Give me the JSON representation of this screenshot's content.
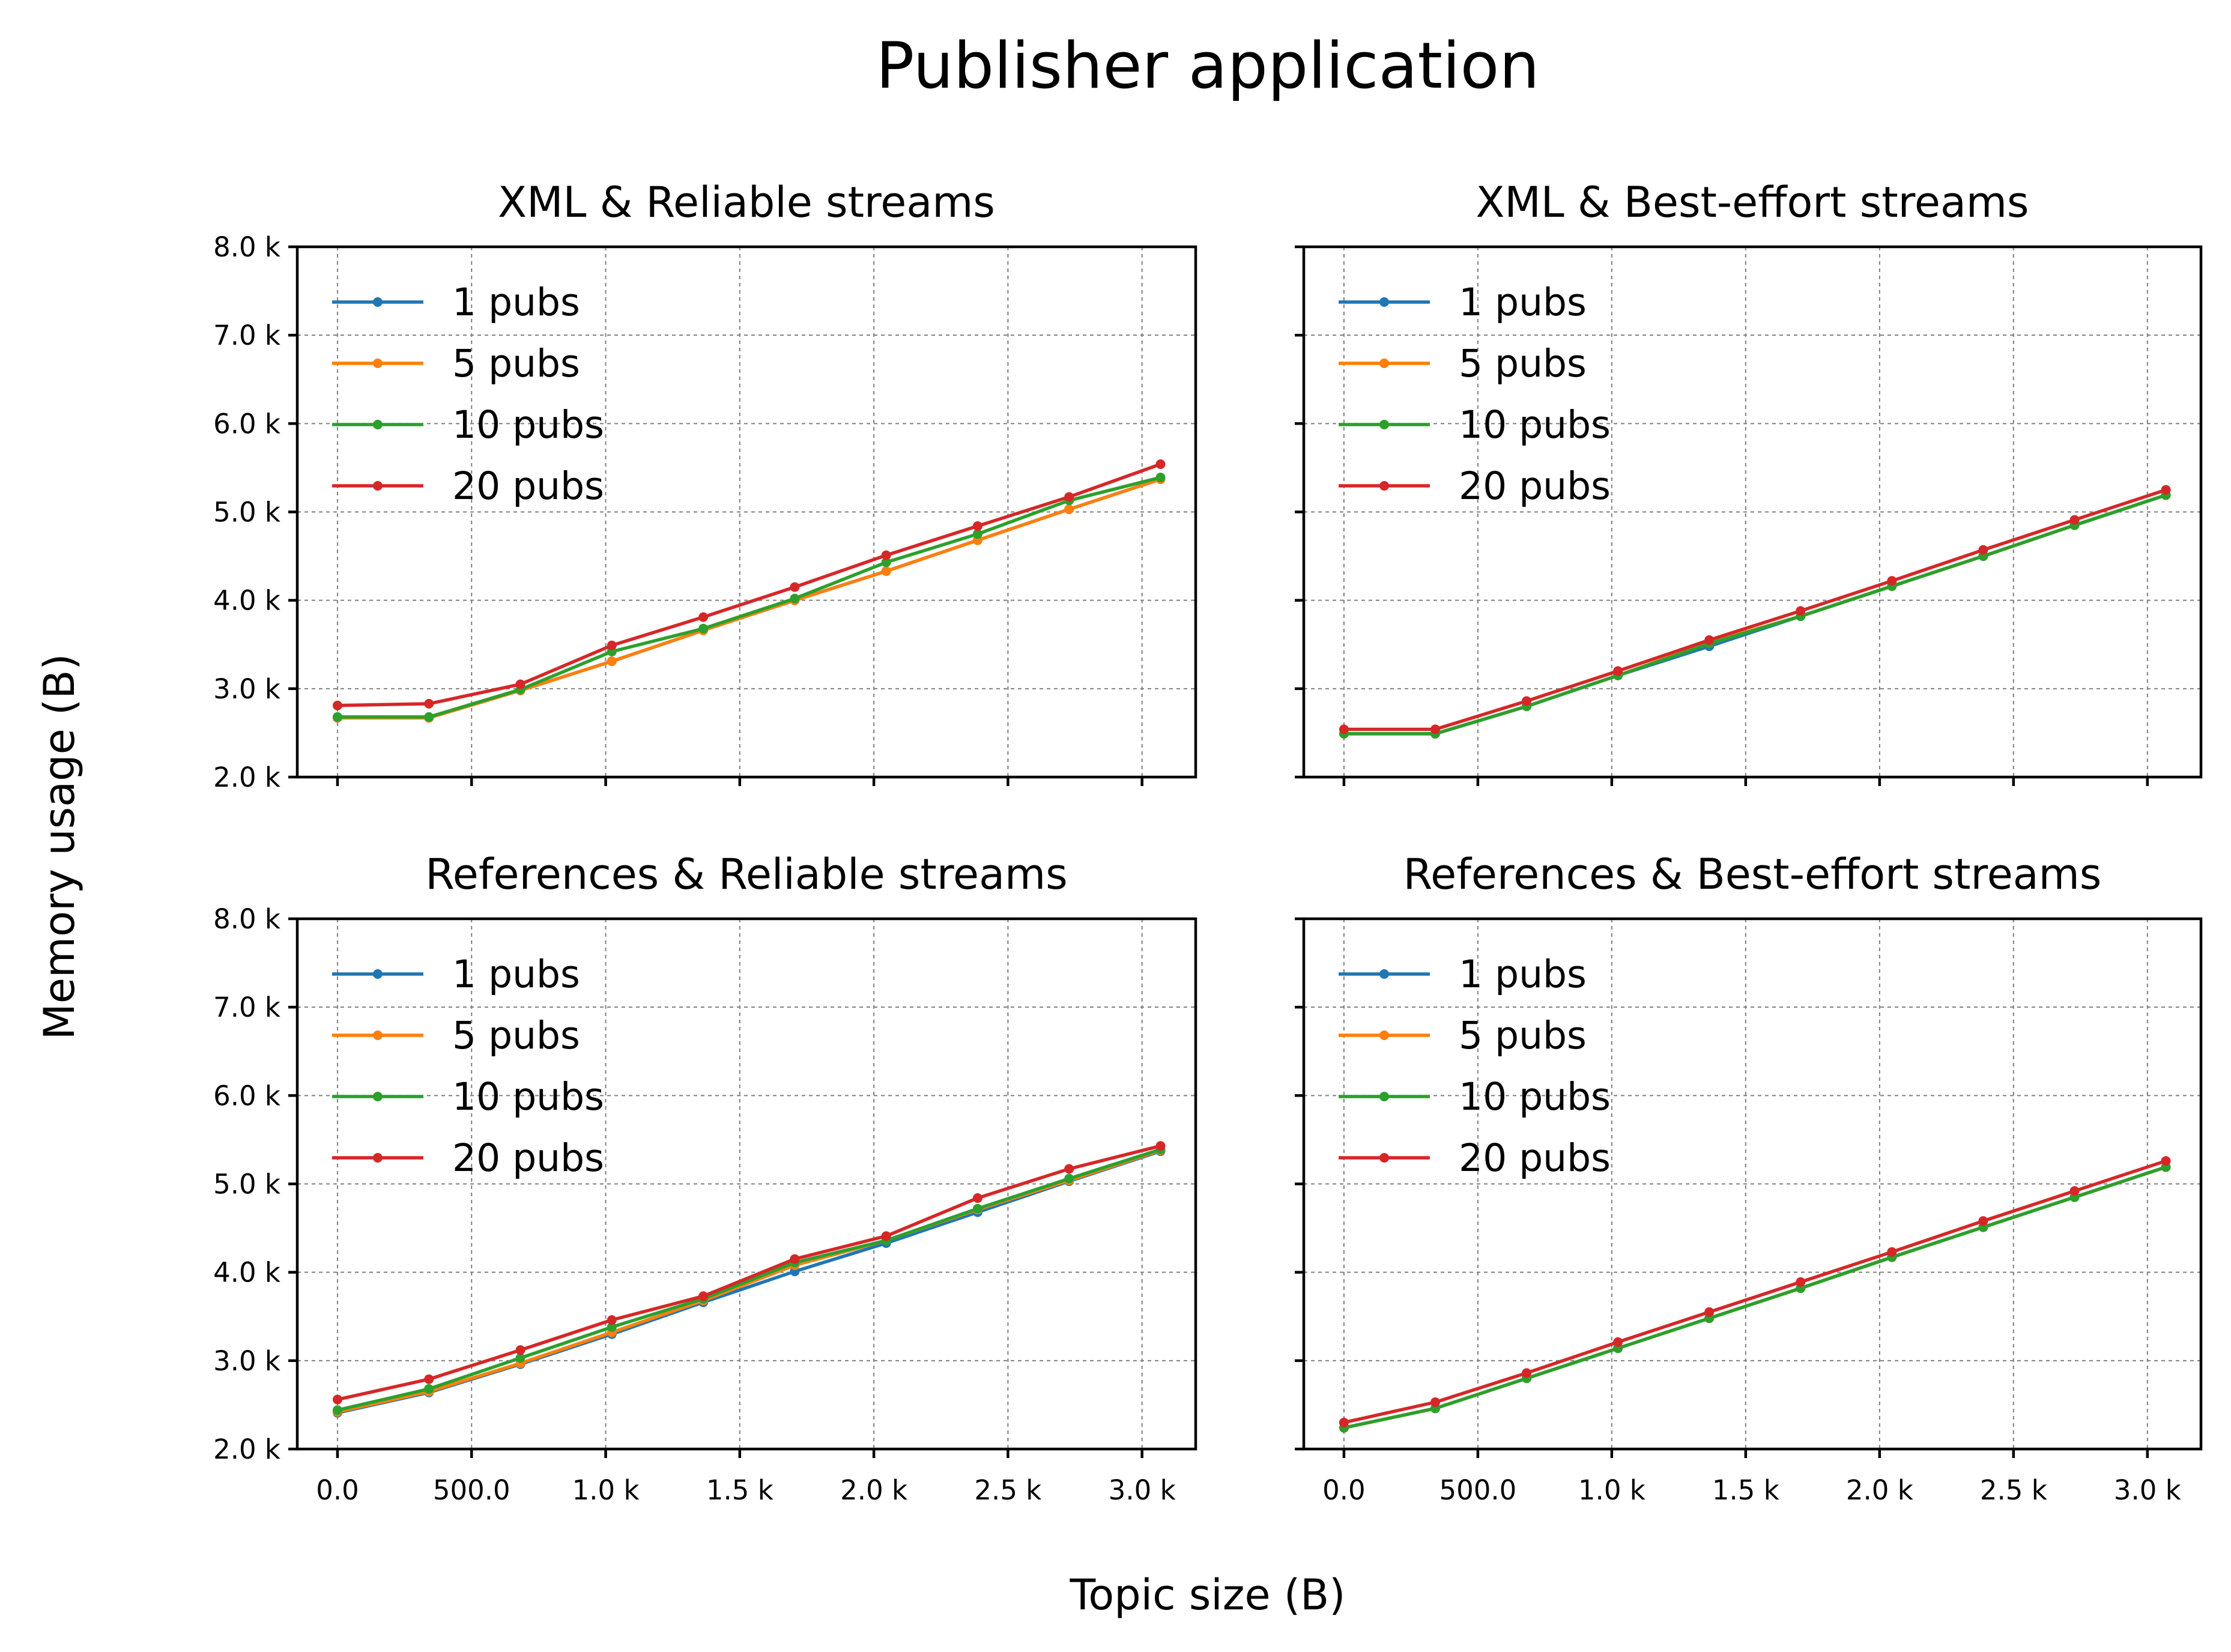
{
  "figure": {
    "title": "Publisher application",
    "xlabel": "Topic size (B)",
    "ylabel": "Memory usage (B)"
  },
  "colors": {
    "1 pubs": "#1f77b4",
    "5 pubs": "#ff7f0e",
    "10 pubs": "#2ca02c",
    "20 pubs": "#d62728"
  },
  "chart_data": [
    {
      "type": "line",
      "title": "XML & Reliable streams",
      "xlim": [
        -150,
        3200
      ],
      "ylim": [
        2000,
        8000
      ],
      "x_ticks": [
        0,
        500,
        1000,
        1500,
        2000,
        2500,
        3000
      ],
      "x_tick_labels": [
        "0.0",
        "500.0",
        "1.0 k",
        "1.5 k",
        "2.0 k",
        "2.5 k",
        "3.0 k"
      ],
      "y_ticks": [
        2000,
        3000,
        4000,
        5000,
        6000,
        7000,
        8000
      ],
      "y_tick_labels": [
        "2.0 k",
        "3.0 k",
        "4.0 k",
        "5.0 k",
        "6.0 k",
        "7.0 k",
        "8.0 k"
      ],
      "show_x_tick_labels": false,
      "grid": true,
      "legend": "upper-left",
      "x": [
        0,
        341,
        682,
        1023,
        1364,
        1705,
        2046,
        2387,
        2728,
        3069
      ],
      "series": [
        {
          "name": "1 pubs",
          "values": [
            2670,
            2670,
            2980,
            3310,
            3660,
            4000,
            4330,
            4680,
            5030,
            5370
          ]
        },
        {
          "name": "5 pubs",
          "values": [
            2670,
            2670,
            2980,
            3310,
            3660,
            4000,
            4330,
            4680,
            5030,
            5370
          ]
        },
        {
          "name": "10 pubs",
          "values": [
            2680,
            2680,
            2990,
            3420,
            3680,
            4020,
            4430,
            4750,
            5130,
            5390
          ]
        },
        {
          "name": "20 pubs",
          "values": [
            2810,
            2830,
            3050,
            3490,
            3810,
            4150,
            4510,
            4840,
            5170,
            5540
          ]
        }
      ]
    },
    {
      "type": "line",
      "title": "XML & Best-effort streams",
      "xlim": [
        -150,
        3200
      ],
      "ylim": [
        2000,
        8000
      ],
      "x_ticks": [
        0,
        500,
        1000,
        1500,
        2000,
        2500,
        3000
      ],
      "x_tick_labels": [
        "0.0",
        "500.0",
        "1.0 k",
        "1.5 k",
        "2.0 k",
        "2.5 k",
        "3.0 k"
      ],
      "y_ticks": [
        2000,
        3000,
        4000,
        5000,
        6000,
        7000,
        8000
      ],
      "y_tick_labels": [
        "2.0 k",
        "3.0 k",
        "4.0 k",
        "5.0 k",
        "6.0 k",
        "7.0 k",
        "8.0 k"
      ],
      "show_x_tick_labels": false,
      "show_y_tick_labels": false,
      "grid": true,
      "legend": "upper-left",
      "x": [
        0,
        341,
        682,
        1023,
        1364,
        1705,
        2046,
        2387,
        2728,
        3069
      ],
      "series": [
        {
          "name": "1 pubs",
          "values": [
            2490,
            2490,
            2800,
            3150,
            3480,
            3820,
            4160,
            4500,
            4850,
            5190
          ]
        },
        {
          "name": "5 pubs",
          "values": [
            2490,
            2490,
            2800,
            3150,
            3520,
            3820,
            4160,
            4500,
            4850,
            5190
          ]
        },
        {
          "name": "10 pubs",
          "values": [
            2490,
            2490,
            2800,
            3150,
            3510,
            3820,
            4160,
            4500,
            4850,
            5190
          ]
        },
        {
          "name": "20 pubs",
          "values": [
            2540,
            2540,
            2860,
            3200,
            3550,
            3880,
            4220,
            4570,
            4910,
            5250
          ]
        }
      ]
    },
    {
      "type": "line",
      "title": "References & Reliable streams",
      "xlim": [
        -150,
        3200
      ],
      "ylim": [
        2000,
        8000
      ],
      "x_ticks": [
        0,
        500,
        1000,
        1500,
        2000,
        2500,
        3000
      ],
      "x_tick_labels": [
        "0.0",
        "500.0",
        "1.0 k",
        "1.5 k",
        "2.0 k",
        "2.5 k",
        "3.0 k"
      ],
      "y_ticks": [
        2000,
        3000,
        4000,
        5000,
        6000,
        7000,
        8000
      ],
      "y_tick_labels": [
        "2.0 k",
        "3.0 k",
        "4.0 k",
        "5.0 k",
        "6.0 k",
        "7.0 k",
        "8.0 k"
      ],
      "grid": true,
      "legend": "upper-left",
      "x": [
        0,
        341,
        682,
        1023,
        1364,
        1705,
        2046,
        2387,
        2728,
        3069
      ],
      "series": [
        {
          "name": "1 pubs",
          "values": [
            2410,
            2640,
            2960,
            3300,
            3660,
            4010,
            4330,
            4680,
            5030,
            5370
          ]
        },
        {
          "name": "5 pubs",
          "values": [
            2420,
            2650,
            2970,
            3320,
            3680,
            4080,
            4360,
            4710,
            5040,
            5380
          ]
        },
        {
          "name": "10 pubs",
          "values": [
            2440,
            2680,
            3030,
            3380,
            3700,
            4110,
            4360,
            4720,
            5060,
            5390
          ]
        },
        {
          "name": "20 pubs",
          "values": [
            2560,
            2790,
            3120,
            3460,
            3730,
            4150,
            4410,
            4840,
            5170,
            5430
          ]
        }
      ]
    },
    {
      "type": "line",
      "title": "References & Best-effort streams",
      "xlim": [
        -150,
        3200
      ],
      "ylim": [
        2000,
        8000
      ],
      "x_ticks": [
        0,
        500,
        1000,
        1500,
        2000,
        2500,
        3000
      ],
      "x_tick_labels": [
        "0.0",
        "500.0",
        "1.0 k",
        "1.5 k",
        "2.0 k",
        "2.5 k",
        "3.0 k"
      ],
      "y_ticks": [
        2000,
        3000,
        4000,
        5000,
        6000,
        7000,
        8000
      ],
      "y_tick_labels": [
        "2.0 k",
        "3.0 k",
        "4.0 k",
        "5.0 k",
        "6.0 k",
        "7.0 k",
        "8.0 k"
      ],
      "show_y_tick_labels": false,
      "grid": true,
      "legend": "upper-left",
      "x": [
        0,
        341,
        682,
        1023,
        1364,
        1705,
        2046,
        2387,
        2728,
        3069
      ],
      "series": [
        {
          "name": "1 pubs",
          "values": [
            2240,
            2460,
            2800,
            3140,
            3480,
            3820,
            4170,
            4510,
            4850,
            5190
          ]
        },
        {
          "name": "5 pubs",
          "values": [
            2240,
            2460,
            2800,
            3140,
            3480,
            3820,
            4170,
            4510,
            4850,
            5190
          ]
        },
        {
          "name": "10 pubs",
          "values": [
            2240,
            2460,
            2800,
            3140,
            3480,
            3820,
            4170,
            4510,
            4850,
            5190
          ]
        },
        {
          "name": "20 pubs",
          "values": [
            2300,
            2530,
            2860,
            3210,
            3550,
            3890,
            4230,
            4580,
            4920,
            5260
          ]
        }
      ]
    }
  ]
}
